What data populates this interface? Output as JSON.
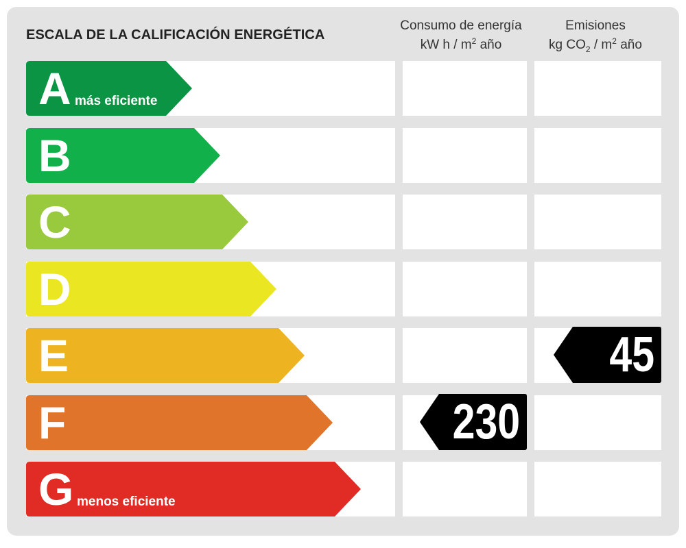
{
  "title": "ESCALA DE LA CALIFICACIÓN ENERGÉTICA",
  "columns": {
    "energy": {
      "line1": "Consumo de energía",
      "line2_pre": "kW h  / m",
      "line2_sup": "2",
      "line2_post": " año"
    },
    "emissions": {
      "line1": "Emisiones",
      "line2_pre": "kg CO",
      "line2_sub": "2",
      "line2_mid": "  / m",
      "line2_sup": "2",
      "line2_post": " año"
    }
  },
  "bands": [
    {
      "letter": "A",
      "note": "más eficiente",
      "color": "#0b9444"
    },
    {
      "letter": "B",
      "note": "",
      "color": "#12b04a"
    },
    {
      "letter": "C",
      "note": "",
      "color": "#99c93c"
    },
    {
      "letter": "D",
      "note": "",
      "color": "#ebe622"
    },
    {
      "letter": "E",
      "note": "",
      "color": "#edb320"
    },
    {
      "letter": "F",
      "note": "",
      "color": "#df742a"
    },
    {
      "letter": "G",
      "note": "menos eficiente",
      "color": "#e12c26"
    }
  ],
  "ratings": {
    "energy": {
      "value": "230",
      "band": "F"
    },
    "emissions": {
      "value": "45",
      "band": "E"
    }
  }
}
